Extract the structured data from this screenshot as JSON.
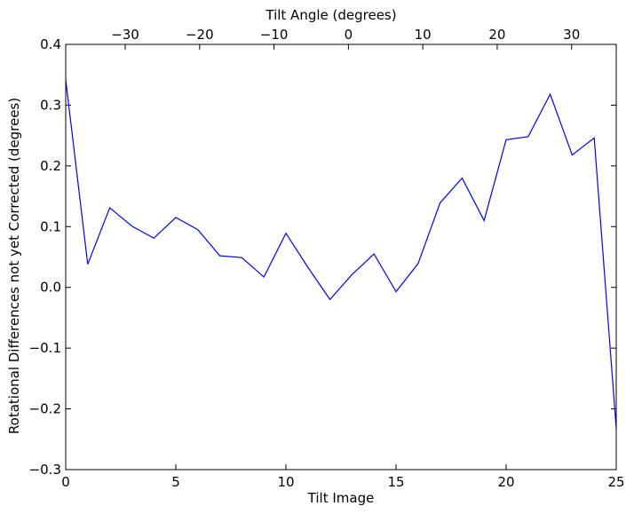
{
  "chart_data": {
    "type": "line",
    "xlabel": "Tilt Image",
    "ylabel": "Rotational Differences not yet Corrected (degrees)",
    "top_xlabel": "Tilt Angle (degrees)",
    "xlim": [
      0,
      25
    ],
    "ylim": [
      -0.3,
      0.4
    ],
    "x_ticks": [
      0,
      5,
      10,
      15,
      20,
      25
    ],
    "x_tick_labels": [
      "0",
      "5",
      "10",
      "15",
      "20",
      "25"
    ],
    "y_ticks": [
      -0.3,
      -0.2,
      -0.1,
      0.0,
      0.1,
      0.2,
      0.3,
      0.4
    ],
    "y_tick_labels": [
      "−0.3",
      "−0.2",
      "−0.1",
      "0.0",
      "0.1",
      "0.2",
      "0.3",
      "0.4"
    ],
    "top_ticks": [
      -30,
      -20,
      -10,
      0,
      10,
      20,
      30
    ],
    "top_tick_labels": [
      "−30",
      "−20",
      "−10",
      "0",
      "10",
      "20",
      "30"
    ],
    "top_xlim": [
      -38,
      36
    ],
    "line_color": "#0000ff",
    "series": [
      {
        "x": [
          0,
          1,
          2,
          3,
          4,
          5,
          6,
          7,
          8,
          9,
          10,
          11,
          12,
          13,
          14,
          15,
          16,
          17,
          18,
          19,
          20,
          21,
          22,
          23,
          24,
          25
        ],
        "values": [
          0.342,
          0.038,
          0.131,
          0.101,
          0.081,
          0.115,
          0.095,
          0.052,
          0.049,
          0.017,
          0.089,
          0.033,
          -0.02,
          0.021,
          0.055,
          -0.007,
          0.039,
          0.139,
          0.18,
          0.11,
          0.243,
          0.248,
          0.318,
          0.218,
          0.246,
          -0.232
        ]
      }
    ]
  }
}
